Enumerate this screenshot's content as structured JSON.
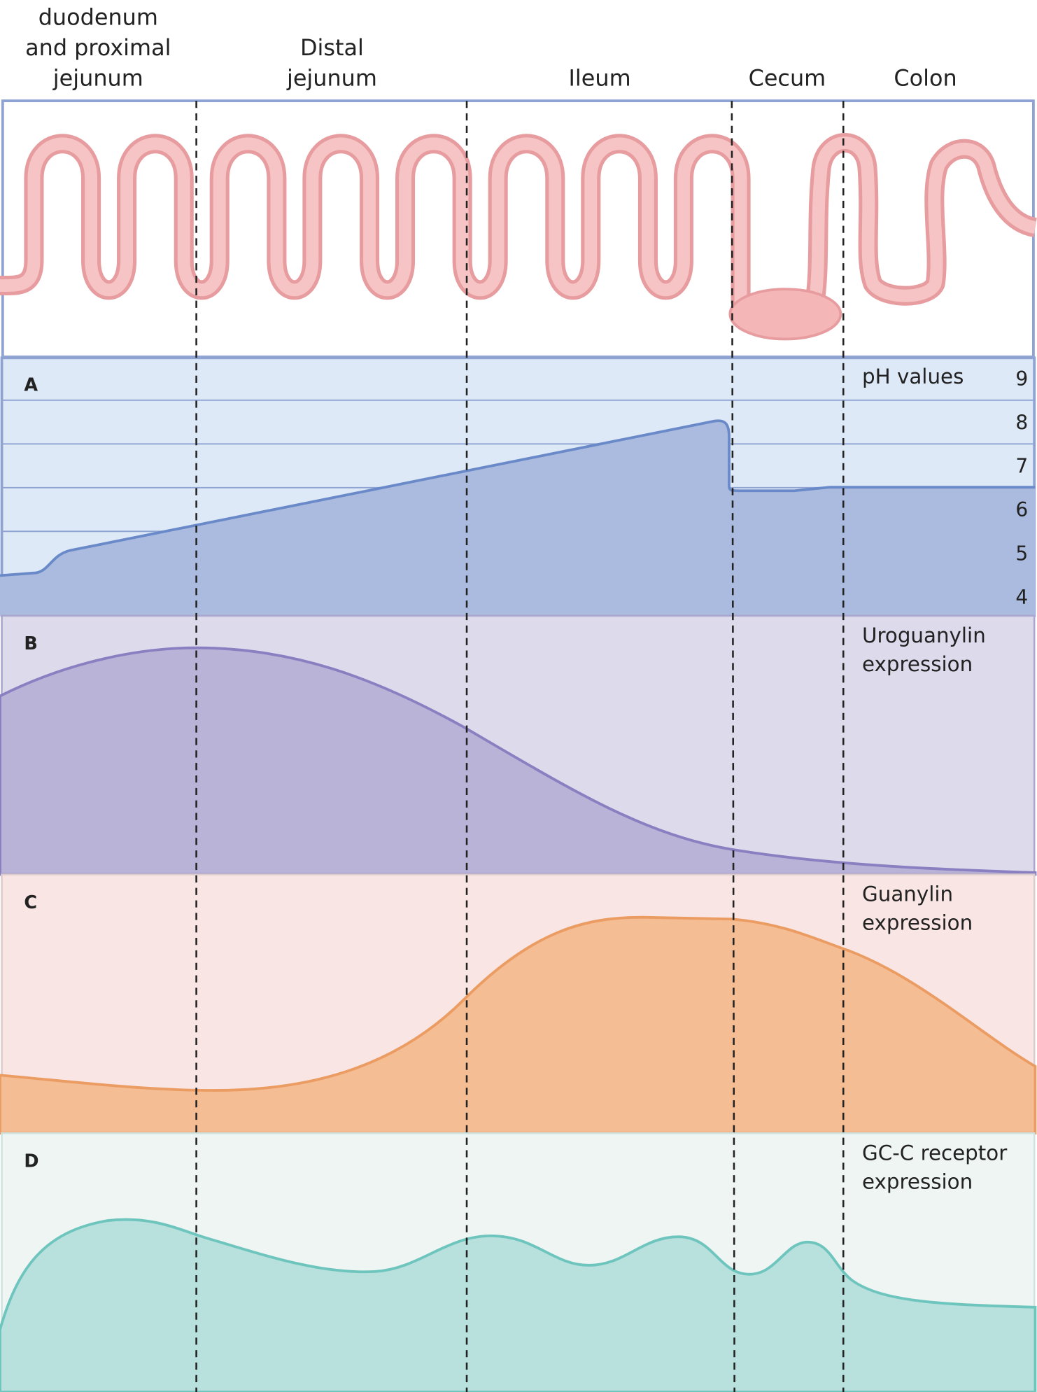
{
  "sections": [
    {
      "lines": [
        "duodenum",
        "and proximal",
        "jejunum"
      ]
    },
    {
      "lines": [
        "Distal",
        "jejunum"
      ]
    },
    {
      "lines": [
        "Ileum"
      ]
    },
    {
      "lines": [
        "Cecum"
      ]
    },
    {
      "lines": [
        "Colon"
      ]
    }
  ],
  "panels": [
    {
      "letter": "A",
      "title": [
        "pH values"
      ]
    },
    {
      "letter": "B",
      "title": [
        "Uroguanylin",
        "expression"
      ]
    },
    {
      "letter": "C",
      "title": [
        "Guanylin",
        "expression"
      ]
    },
    {
      "letter": "D",
      "title": [
        "GC-C receptor",
        "expression"
      ]
    }
  ],
  "ph_ticks": [
    9,
    8,
    7,
    6,
    5,
    4
  ]
}
